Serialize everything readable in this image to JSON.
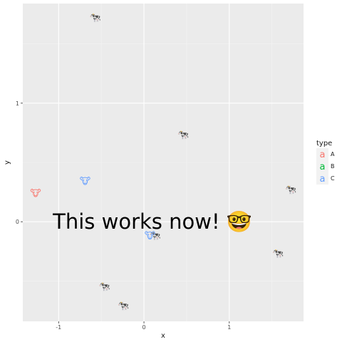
{
  "chart_data": {
    "type": "scatter",
    "title": "",
    "xlabel": "x",
    "ylabel": "y",
    "xlim": [
      -1.42,
      1.87
    ],
    "ylim": [
      -0.84,
      1.84
    ],
    "x_ticks": [
      -1,
      0,
      1
    ],
    "y_ticks": [
      0,
      1
    ],
    "x_tick_labels": [
      "-1",
      "0",
      "1"
    ],
    "y_tick_labels": [
      "0",
      "1"
    ],
    "grid": true,
    "legend": {
      "title": "type",
      "placement": "right",
      "key_glyph": "a"
    },
    "series": [
      {
        "name": "A",
        "color": "#F8766D",
        "points": [
          {
            "x": -0.57,
            "y": 1.72,
            "label": "🐄"
          },
          {
            "x": -1.27,
            "y": 0.24,
            "label": "🐮"
          }
        ]
      },
      {
        "name": "B",
        "color": "#00BA38",
        "points": [
          {
            "x": 1.72,
            "y": 0.27,
            "label": "🐄"
          },
          {
            "x": 0.13,
            "y": -0.12,
            "label": "🐄"
          },
          {
            "x": -0.46,
            "y": -0.55,
            "label": "🐄"
          }
        ]
      },
      {
        "name": "C",
        "color": "#619CFF",
        "points": [
          {
            "x": 0.46,
            "y": 0.73,
            "label": "🐄"
          },
          {
            "x": -0.69,
            "y": 0.34,
            "label": "🐮"
          },
          {
            "x": 0.07,
            "y": -0.12,
            "label": "🐮"
          },
          {
            "x": 1.57,
            "y": -0.27,
            "label": "🐄"
          },
          {
            "x": -0.24,
            "y": -0.71,
            "label": "🐄"
          }
        ]
      }
    ],
    "annotations": [
      {
        "text": "This works now! 🤓",
        "x": 0.1,
        "y": 0.0
      }
    ]
  }
}
